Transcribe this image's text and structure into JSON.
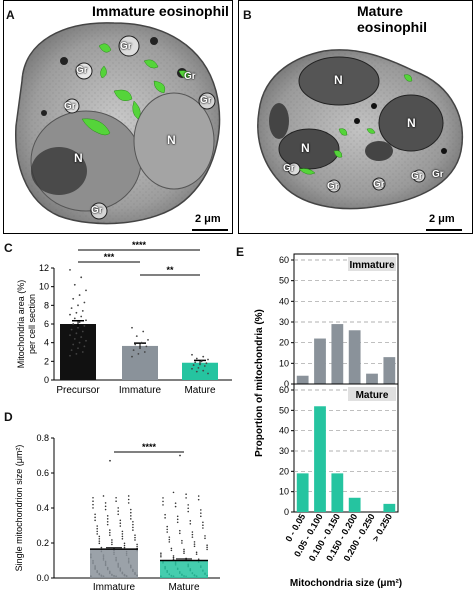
{
  "colors": {
    "precursor": "#111111",
    "immature": "#8a929a",
    "mature": "#25c4a0",
    "mito": "#55d43a"
  },
  "panel_a": {
    "letter": "A",
    "title": "Immature eosinophil",
    "labels": [
      "Gr",
      "Gr",
      "Gr",
      "Gr",
      "Gr",
      "N",
      "N",
      "Gr"
    ],
    "scale": "2 μm"
  },
  "panel_b": {
    "letter": "B",
    "title": "Mature eosinophil",
    "labels": [
      "N",
      "N",
      "N",
      "Gr",
      "Gr",
      "Gr",
      "Gr",
      "Gr"
    ],
    "scale": "2 μm"
  },
  "chart_data": [
    {
      "panel": "C",
      "type": "bar",
      "ylabel": "Mitochondria area (%)\nper cell section",
      "categories": [
        "Precursor",
        "Immature",
        "Mature"
      ],
      "values": [
        6.0,
        3.65,
        1.85
      ],
      "sem": [
        0.35,
        0.3,
        0.25
      ],
      "ylim": [
        0,
        12
      ],
      "yticks": [
        "0",
        "2",
        "4",
        "6",
        "8",
        "10",
        "12"
      ],
      "significance": [
        {
          "from": 0,
          "to": 2,
          "label": "****"
        },
        {
          "from": 0,
          "to": 1,
          "label": "***"
        },
        {
          "from": 1,
          "to": 2,
          "label": "**"
        }
      ],
      "points": [
        [
          11.8,
          11.0,
          10.2,
          9.6,
          9.1,
          8.7,
          8.3,
          8.0,
          7.7,
          7.4,
          7.2,
          7.0,
          6.8,
          6.6,
          6.4,
          6.2,
          6.0,
          5.8,
          5.6,
          5.4,
          5.2,
          5.0,
          4.8,
          4.6,
          4.4,
          4.2,
          4.0,
          3.8,
          3.6,
          3.4,
          3.2,
          3.0,
          2.8,
          2.6
        ],
        [
          5.6,
          5.2,
          4.7,
          4.3,
          4.0,
          3.8,
          3.6,
          3.4,
          3.2,
          3.0,
          2.8,
          2.5
        ],
        [
          2.7,
          2.5,
          2.3,
          2.2,
          2.0,
          1.9,
          1.8,
          1.7,
          1.6,
          1.5,
          1.3,
          1.2,
          1.0,
          0.9,
          0.7
        ]
      ],
      "grid": false
    },
    {
      "panel": "D",
      "type": "bar",
      "ylabel": "Single mitochondrion size (μm²)",
      "categories": [
        "Immature",
        "Mature"
      ],
      "values": [
        0.165,
        0.1
      ],
      "sem": [
        0.008,
        0.009
      ],
      "ylim": [
        0,
        0.8
      ],
      "yticks": [
        "0.0",
        "0.2",
        "0.4",
        "0.6",
        "0.8"
      ],
      "significance": [
        {
          "from": 0,
          "to": 1,
          "label": "****"
        }
      ],
      "points_max": [
        0.67,
        0.7
      ],
      "grid": false
    },
    {
      "panel": "E",
      "type": "bar",
      "ylabel": "Proportion of mitochondria (%)",
      "xlabel": "Mitochondria size (μm²)",
      "categories": [
        "0 - 0.05",
        "0.05 - 0.100",
        "0.100 - 0.150",
        "0.150 - 0.200",
        "0.200 - 0.250",
        "> 0.250"
      ],
      "series": [
        {
          "name": "Immature",
          "values": [
            4,
            22,
            29,
            26,
            5,
            13
          ]
        },
        {
          "name": "Mature",
          "values": [
            19,
            52,
            19,
            7,
            0,
            4
          ]
        }
      ],
      "ylim": [
        0,
        60
      ],
      "yticks": [
        "0",
        "10",
        "20",
        "30",
        "40",
        "50",
        "60"
      ],
      "grid": true
    }
  ],
  "panel_letters": {
    "c": "C",
    "d": "D",
    "e": "E"
  }
}
